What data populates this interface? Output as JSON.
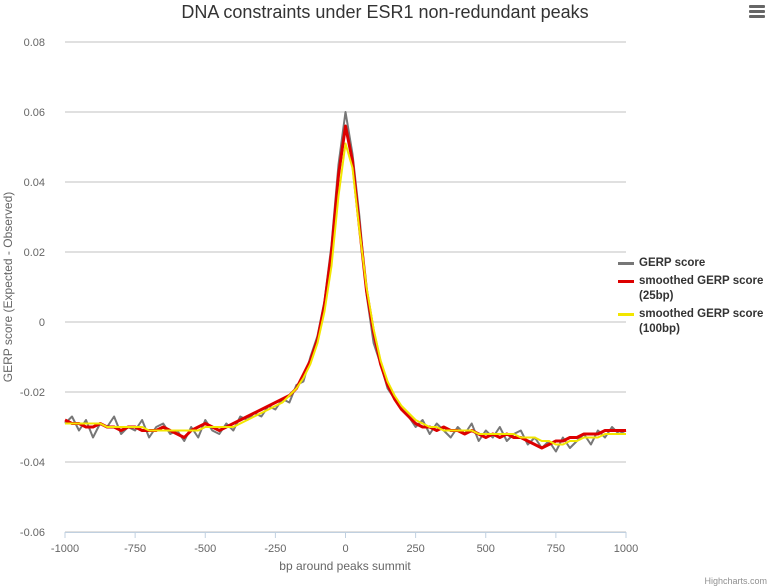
{
  "chart_data": {
    "type": "line",
    "title": "DNA constraints under ESR1 non-redundant peaks",
    "x_label": "bp around peaks summit",
    "y_label": "GERP score (Expected - Observed)",
    "credits": "Highcharts.com",
    "x": [
      -1000,
      -975,
      -950,
      -925,
      -900,
      -875,
      -850,
      -825,
      -800,
      -775,
      -750,
      -725,
      -700,
      -675,
      -650,
      -625,
      -600,
      -575,
      -550,
      -525,
      -500,
      -475,
      -450,
      -425,
      -400,
      -375,
      -350,
      -325,
      -300,
      -275,
      -250,
      -225,
      -200,
      -175,
      -150,
      -125,
      -100,
      -75,
      -50,
      -25,
      0,
      25,
      50,
      75,
      100,
      125,
      150,
      175,
      200,
      225,
      250,
      275,
      300,
      325,
      350,
      375,
      400,
      425,
      450,
      475,
      500,
      525,
      550,
      575,
      600,
      625,
      650,
      675,
      700,
      725,
      750,
      775,
      800,
      825,
      850,
      875,
      900,
      925,
      950,
      975,
      1000
    ],
    "series": [
      {
        "name": "GERP score",
        "color": "#777777",
        "width": 2,
        "values": [
          -0.029,
          -0.027,
          -0.031,
          -0.028,
          -0.033,
          -0.029,
          -0.03,
          -0.027,
          -0.032,
          -0.03,
          -0.031,
          -0.028,
          -0.033,
          -0.03,
          -0.029,
          -0.032,
          -0.031,
          -0.034,
          -0.03,
          -0.033,
          -0.028,
          -0.031,
          -0.032,
          -0.029,
          -0.031,
          -0.027,
          -0.028,
          -0.026,
          -0.027,
          -0.024,
          -0.025,
          -0.022,
          -0.023,
          -0.018,
          -0.017,
          -0.01,
          -0.004,
          0.006,
          0.022,
          0.045,
          0.06,
          0.048,
          0.03,
          0.008,
          -0.006,
          -0.012,
          -0.019,
          -0.022,
          -0.025,
          -0.027,
          -0.03,
          -0.028,
          -0.032,
          -0.029,
          -0.031,
          -0.033,
          -0.03,
          -0.032,
          -0.029,
          -0.034,
          -0.031,
          -0.033,
          -0.03,
          -0.034,
          -0.032,
          -0.031,
          -0.035,
          -0.033,
          -0.036,
          -0.034,
          -0.037,
          -0.033,
          -0.036,
          -0.034,
          -0.032,
          -0.035,
          -0.031,
          -0.033,
          -0.03,
          -0.032,
          -0.031
        ]
      },
      {
        "name": "smoothed GERP score (25bp)",
        "color": "#dd0000",
        "width": 3,
        "values": [
          -0.028,
          -0.029,
          -0.029,
          -0.03,
          -0.03,
          -0.029,
          -0.03,
          -0.03,
          -0.031,
          -0.03,
          -0.03,
          -0.031,
          -0.031,
          -0.031,
          -0.03,
          -0.031,
          -0.032,
          -0.033,
          -0.031,
          -0.03,
          -0.029,
          -0.03,
          -0.031,
          -0.03,
          -0.029,
          -0.028,
          -0.027,
          -0.026,
          -0.025,
          -0.024,
          -0.023,
          -0.022,
          -0.021,
          -0.019,
          -0.015,
          -0.011,
          -0.005,
          0.005,
          0.02,
          0.042,
          0.056,
          0.046,
          0.027,
          0.009,
          -0.003,
          -0.012,
          -0.018,
          -0.022,
          -0.025,
          -0.027,
          -0.029,
          -0.03,
          -0.03,
          -0.031,
          -0.03,
          -0.031,
          -0.031,
          -0.032,
          -0.031,
          -0.032,
          -0.033,
          -0.032,
          -0.033,
          -0.032,
          -0.033,
          -0.033,
          -0.034,
          -0.035,
          -0.036,
          -0.035,
          -0.034,
          -0.034,
          -0.033,
          -0.033,
          -0.032,
          -0.032,
          -0.032,
          -0.031,
          -0.031,
          -0.031,
          -0.031
        ]
      },
      {
        "name": "smoothed GERP score (100bp)",
        "color": "#f2e600",
        "width": 2,
        "values": [
          -0.029,
          -0.029,
          -0.029,
          -0.029,
          -0.029,
          -0.029,
          -0.03,
          -0.03,
          -0.03,
          -0.03,
          -0.03,
          -0.03,
          -0.031,
          -0.031,
          -0.031,
          -0.031,
          -0.031,
          -0.031,
          -0.031,
          -0.031,
          -0.03,
          -0.03,
          -0.03,
          -0.03,
          -0.03,
          -0.029,
          -0.028,
          -0.027,
          -0.026,
          -0.025,
          -0.024,
          -0.023,
          -0.021,
          -0.019,
          -0.016,
          -0.012,
          -0.006,
          0.003,
          0.016,
          0.036,
          0.051,
          0.044,
          0.026,
          0.01,
          -0.002,
          -0.011,
          -0.017,
          -0.021,
          -0.024,
          -0.026,
          -0.028,
          -0.029,
          -0.03,
          -0.03,
          -0.031,
          -0.031,
          -0.031,
          -0.031,
          -0.031,
          -0.032,
          -0.032,
          -0.032,
          -0.032,
          -0.032,
          -0.032,
          -0.033,
          -0.033,
          -0.033,
          -0.034,
          -0.034,
          -0.035,
          -0.035,
          -0.034,
          -0.034,
          -0.033,
          -0.033,
          -0.033,
          -0.032,
          -0.032,
          -0.032,
          -0.032
        ]
      }
    ],
    "xlim": [
      -1000,
      1000
    ],
    "xticks": [
      -1000,
      -750,
      -500,
      -250,
      0,
      250,
      500,
      750,
      1000
    ],
    "ylim": [
      -0.06,
      0.08
    ],
    "yticks": [
      -0.06,
      -0.04,
      -0.02,
      0,
      0.02,
      0.04,
      0.06,
      0.08
    ],
    "grid": true,
    "legend": "right"
  }
}
